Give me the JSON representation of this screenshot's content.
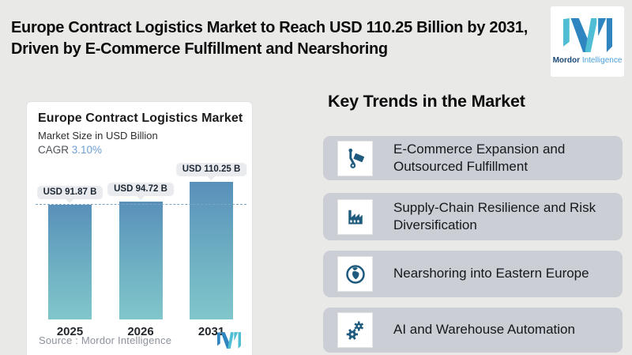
{
  "header": {
    "title": "Europe Contract Logistics Market to Reach USD 110.25 Billion by 2031, Driven by E-Commerce Fulfillment and Nearshoring"
  },
  "logo": {
    "brand_bold": "Mordor",
    "brand_light": "Intelligence",
    "teal": "#4fbdd3",
    "blue": "#2f85bf"
  },
  "chart_card": {
    "title": "Europe Contract Logistics Market",
    "subtitle": "Market Size in USD Billion",
    "cagr_label": "CAGR",
    "cagr_value": "3.10%",
    "source_label": "Source :  Mordor Intelligence"
  },
  "chart_data": {
    "type": "bar",
    "title": "Europe Contract Logistics Market",
    "subtitle": "Market Size in USD Billion",
    "cagr": "3.10%",
    "categories": [
      "2025",
      "2026",
      "2031"
    ],
    "values": [
      91.87,
      94.72,
      110.25
    ],
    "bar_labels": [
      "USD 91.87 B",
      "USD 94.72 B",
      "USD 110.25 B"
    ],
    "unit": "USD Billion",
    "ylim": [
      0,
      135
    ],
    "reference_line_value": 91.87,
    "grid": false,
    "legend": false,
    "bar_gradient_top": "#5890ba",
    "bar_gradient_bottom": "#81c6cb",
    "reference_line_color": "#7aa4c8"
  },
  "trends": {
    "heading": "Key Trends in the Market",
    "card_bg": "#cbced5",
    "icon_color": "#1e5a7d",
    "items": [
      {
        "icon": "hand-truck-icon",
        "label": "E-Commerce Expansion and Outsourced Fulfillment"
      },
      {
        "icon": "factory-icon",
        "label": "Supply-Chain Resilience and Risk Diversification"
      },
      {
        "icon": "globe-icon",
        "label": "Nearshoring into Eastern Europe"
      },
      {
        "icon": "gears-icon",
        "label": "AI and Warehouse Automation"
      }
    ]
  }
}
